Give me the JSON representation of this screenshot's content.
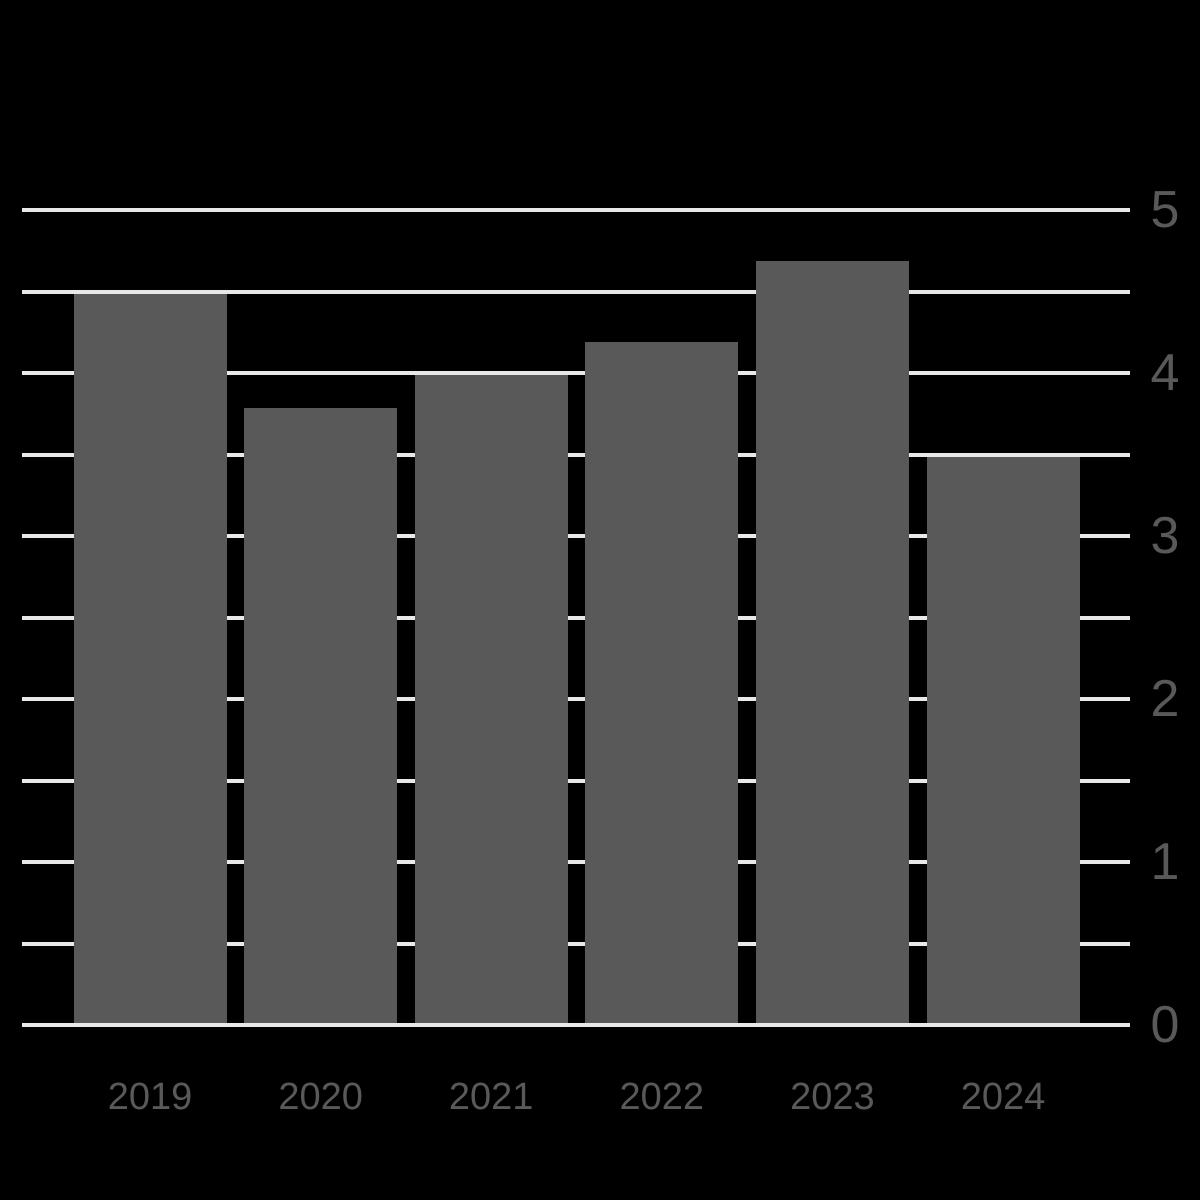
{
  "chart_data": {
    "type": "bar",
    "title": "",
    "xlabel": "",
    "ylabel": "",
    "categories": [
      "2019",
      "2020",
      "2021",
      "2022",
      "2023",
      "2024"
    ],
    "values": [
      4.5,
      3.8,
      4.0,
      4.2,
      4.7,
      3.5
    ],
    "ylim": [
      0,
      5
    ],
    "yticks": [
      0,
      1,
      2,
      3,
      4,
      5
    ],
    "grid_step": 0.5,
    "grid": true,
    "legend_position": "none",
    "y_axis_side": "right",
    "colors": {
      "background": "#000000",
      "bar": "#595959",
      "gridline": "#e8e8e8",
      "tick_label": "#595959"
    }
  }
}
